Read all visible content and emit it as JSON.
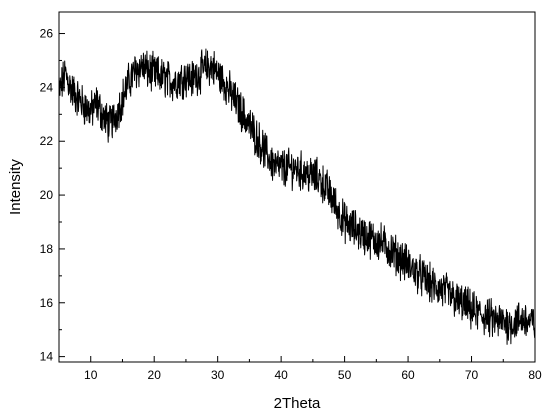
{
  "chart_data": {
    "type": "line",
    "title": "",
    "xlabel": "2Theta",
    "ylabel": "Intensity",
    "xlim": [
      5,
      80
    ],
    "ylim": [
      13.8,
      26.8
    ],
    "xticks": [
      10,
      20,
      30,
      40,
      50,
      60,
      70,
      80
    ],
    "yticks": [
      14,
      16,
      18,
      20,
      22,
      24,
      26
    ],
    "grid": false,
    "legend": "none",
    "line_color": "#000000",
    "series": [
      {
        "x": [
          5,
          6,
          7,
          8,
          9,
          10,
          11,
          12,
          13,
          14,
          15,
          16,
          17,
          18,
          19,
          20,
          21,
          22,
          23,
          24,
          25,
          26,
          27,
          28,
          29,
          30,
          31,
          32,
          33,
          34,
          35,
          36,
          37,
          38,
          39,
          40,
          41,
          42,
          43,
          44,
          45,
          46,
          47,
          48,
          49,
          50,
          51,
          52,
          53,
          54,
          55,
          56,
          57,
          58,
          59,
          60,
          61,
          62,
          63,
          64,
          65,
          66,
          67,
          68,
          69,
          70,
          71,
          72,
          73,
          74,
          75,
          76,
          77,
          78,
          79,
          80
        ],
        "values": [
          23.8,
          24.5,
          23.9,
          23.6,
          23.3,
          23.1,
          23.4,
          22.9,
          22.6,
          23.0,
          23.6,
          24.2,
          24.6,
          24.8,
          24.6,
          24.5,
          24.4,
          24.3,
          24.2,
          24.3,
          24.4,
          24.3,
          24.5,
          24.7,
          24.8,
          24.5,
          24.2,
          23.8,
          23.4,
          23.0,
          22.6,
          22.2,
          21.8,
          21.4,
          21.1,
          21.0,
          21.0,
          21.0,
          20.9,
          20.8,
          20.7,
          20.6,
          20.3,
          19.9,
          19.4,
          19.0,
          18.8,
          18.7,
          18.5,
          18.4,
          18.3,
          18.2,
          18.0,
          17.8,
          17.6,
          17.4,
          17.2,
          17.0,
          16.8,
          16.6,
          16.5,
          16.4,
          16.2,
          16.0,
          15.9,
          15.7,
          15.6,
          15.5,
          15.4,
          15.3,
          15.3,
          15.2,
          15.3,
          15.4,
          15.3,
          15.2
        ]
      }
    ]
  }
}
